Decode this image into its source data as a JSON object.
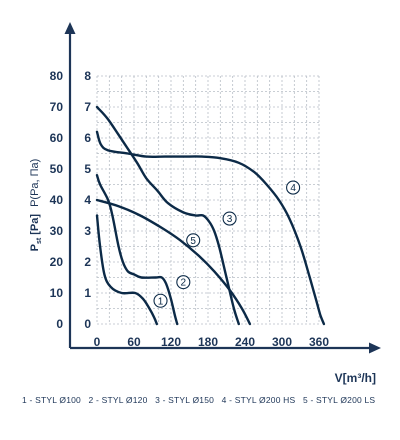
{
  "chart_data": {
    "type": "line",
    "title": "",
    "ylabel_left": "P",
    "ylabel_left_sub": "st",
    "ylabel_left_unit": "[Pa]",
    "ylabel_right": "P(Pa, Па)",
    "xlabel": "V[m³/h]",
    "xlim": [
      0,
      440
    ],
    "ylim_left": [
      0,
      80
    ],
    "ylim_right": [
      0,
      8
    ],
    "xticks": [
      0,
      60,
      120,
      180,
      240,
      300,
      360
    ],
    "yticks_left": [
      0,
      10,
      20,
      30,
      40,
      50,
      60,
      70,
      80
    ],
    "yticks_right": [
      0,
      1,
      2,
      3,
      4,
      5,
      6,
      7,
      8
    ],
    "grid": true,
    "series": [
      {
        "name": "1",
        "marker_label": "1",
        "color": "#0c2a47",
        "label_at": [
          103,
          7.5
        ],
        "points": [
          [
            0,
            35
          ],
          [
            5,
            25
          ],
          [
            12,
            16
          ],
          [
            22,
            12
          ],
          [
            40,
            10
          ],
          [
            62,
            10
          ],
          [
            75,
            8
          ],
          [
            85,
            5
          ],
          [
            93,
            2
          ],
          [
            97,
            0
          ]
        ]
      },
      {
        "name": "2",
        "marker_label": "2",
        "color": "#0c2a47",
        "label_at": [
          140,
          13.5
        ],
        "points": [
          [
            0,
            48
          ],
          [
            5,
            45
          ],
          [
            18,
            40
          ],
          [
            25,
            35
          ],
          [
            35,
            25
          ],
          [
            42,
            20
          ],
          [
            50,
            17
          ],
          [
            60,
            16
          ],
          [
            72,
            15
          ],
          [
            95,
            15
          ],
          [
            105,
            15
          ],
          [
            112,
            13
          ],
          [
            120,
            8
          ],
          [
            126,
            3
          ],
          [
            130,
            0
          ]
        ]
      },
      {
        "name": "3",
        "marker_label": "3",
        "color": "#0c2a47",
        "label_at": [
          215,
          34
        ],
        "points": [
          [
            0,
            70
          ],
          [
            18,
            66
          ],
          [
            45,
            58
          ],
          [
            65,
            52
          ],
          [
            80,
            47
          ],
          [
            98,
            43
          ],
          [
            115,
            39
          ],
          [
            140,
            36
          ],
          [
            160,
            35
          ],
          [
            172,
            35
          ],
          [
            182,
            33
          ],
          [
            190,
            30
          ],
          [
            198,
            25
          ],
          [
            210,
            15
          ],
          [
            222,
            5
          ],
          [
            230,
            0
          ]
        ]
      },
      {
        "name": "4",
        "marker_label": "4",
        "color": "#0c2a47",
        "label_at": [
          318,
          44
        ],
        "points": [
          [
            0,
            62
          ],
          [
            6,
            58
          ],
          [
            18,
            56
          ],
          [
            50,
            55
          ],
          [
            80,
            54
          ],
          [
            110,
            54
          ],
          [
            140,
            54
          ],
          [
            170,
            54
          ],
          [
            200,
            53.5
          ],
          [
            230,
            52
          ],
          [
            255,
            49
          ],
          [
            275,
            45
          ],
          [
            295,
            40
          ],
          [
            312,
            34
          ],
          [
            330,
            25
          ],
          [
            345,
            15
          ],
          [
            355,
            8
          ],
          [
            362,
            3
          ],
          [
            368,
            0
          ]
        ]
      },
      {
        "name": "5",
        "marker_label": "5",
        "color": "#0c2a47",
        "label_at": [
          156,
          27
        ],
        "points": [
          [
            0,
            40
          ],
          [
            35,
            38
          ],
          [
            70,
            35
          ],
          [
            105,
            31
          ],
          [
            135,
            27
          ],
          [
            165,
            22
          ],
          [
            190,
            17
          ],
          [
            215,
            11
          ],
          [
            235,
            5
          ],
          [
            248,
            0
          ]
        ]
      }
    ],
    "legend": {
      "placement": "bottom",
      "entries": [
        "1 - STYL Ø100",
        "2 - STYL Ø120",
        "3 - STYL Ø150",
        "4 - STYL Ø200 HS",
        "5 - STYL Ø200 LS"
      ]
    }
  }
}
